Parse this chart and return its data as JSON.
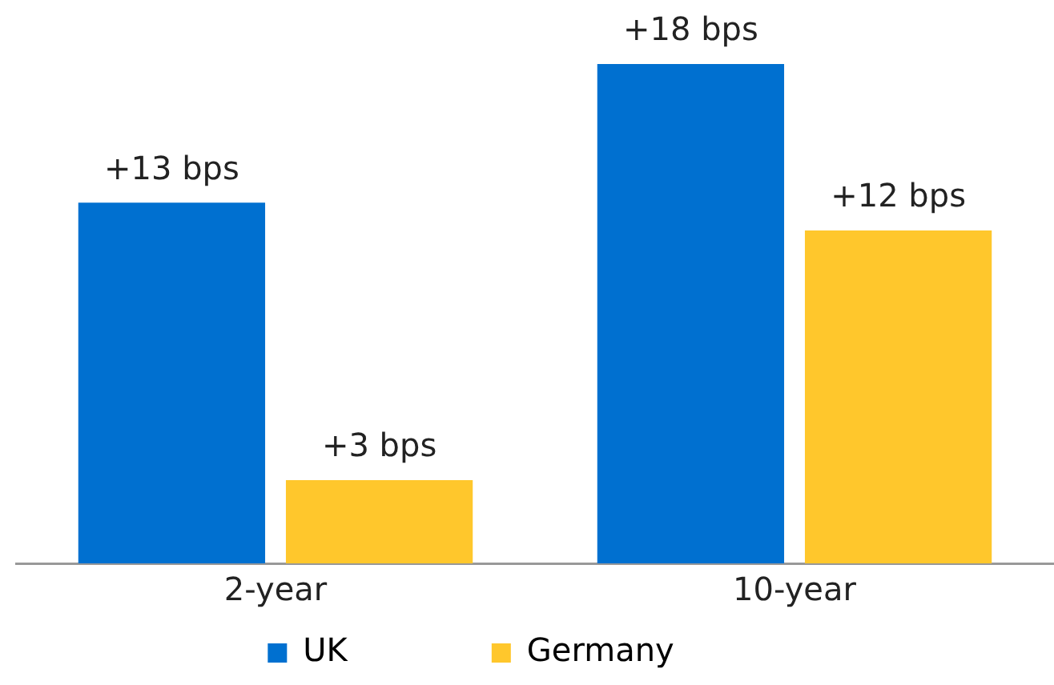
{
  "chart_data": {
    "type": "bar",
    "categories": [
      "2-year",
      "10-year"
    ],
    "series": [
      {
        "name": "UK",
        "color": "#0070d0",
        "values": [
          13,
          18
        ],
        "value_labels": [
          "+13 bps",
          "+18 bps"
        ]
      },
      {
        "name": "Germany",
        "color": "#ffc72c",
        "values": [
          3,
          12
        ],
        "value_labels": [
          "+3 bps",
          "+12 bps"
        ]
      }
    ],
    "grid": false,
    "legend": "bottom",
    "tick_labels": "x"
  }
}
